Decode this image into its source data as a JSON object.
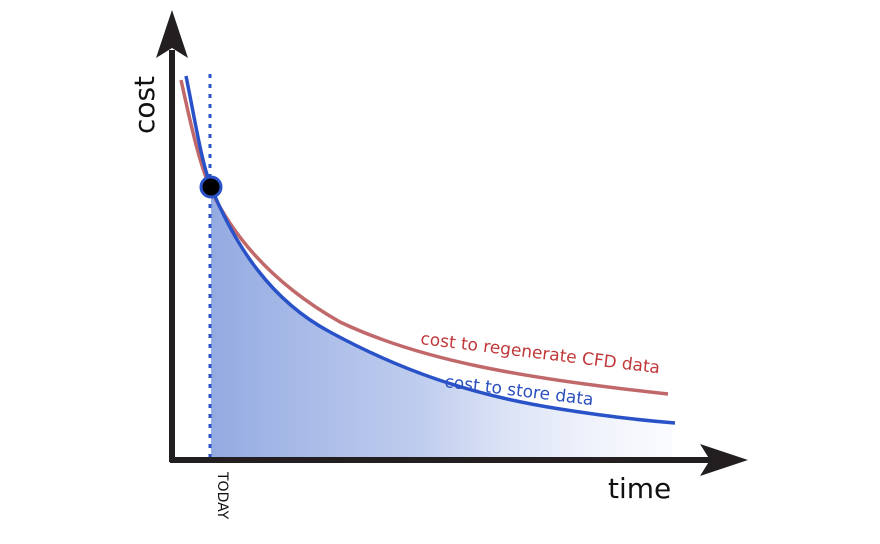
{
  "axes": {
    "y_label": "cost",
    "x_label": "time",
    "x_marker_label": "TODAY"
  },
  "curves": {
    "regenerate_label": "cost to regenerate CFD data",
    "store_label": "cost to store data"
  },
  "colors": {
    "axis": "#231f20",
    "regenerate_curve": "#c0686a",
    "regenerate_text": "#c0383a",
    "store_curve": "#2a52c8",
    "store_text": "#2a4fc0",
    "fill": "#8ea6e0",
    "marker": "#2a52c8"
  }
}
